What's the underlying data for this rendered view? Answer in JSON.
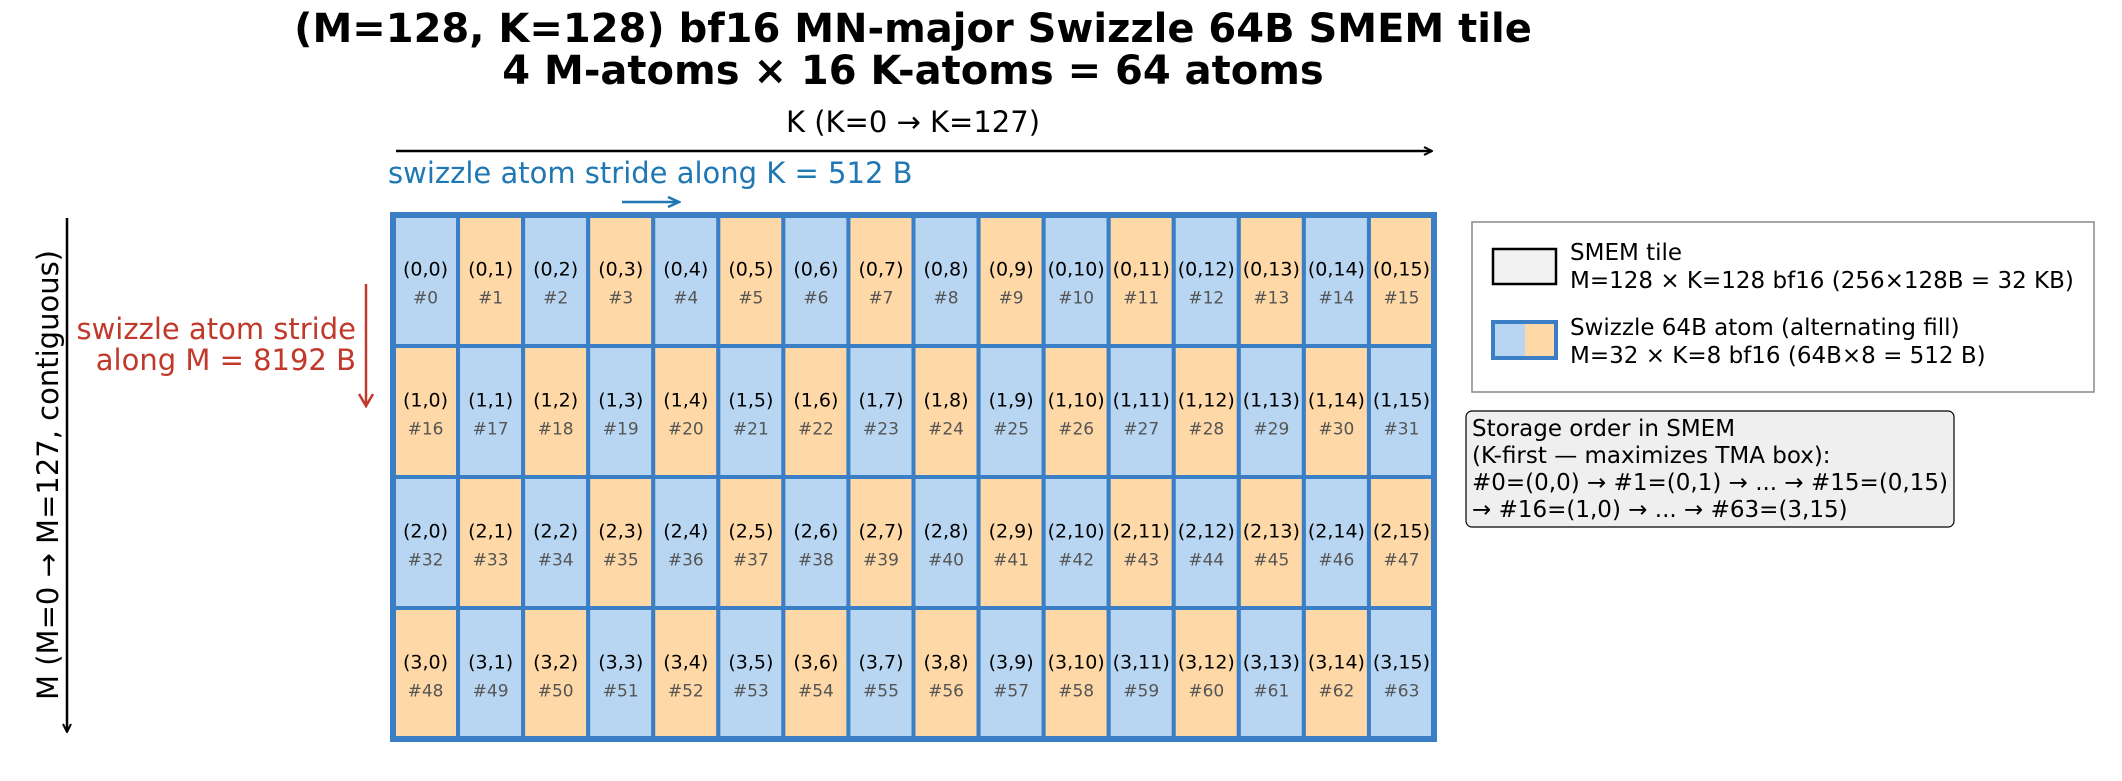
{
  "title": {
    "line1": "(M=128, K=128) bf16 MN-major Swizzle 64B SMEM tile",
    "line2": "4 M-atoms × 16 K-atoms = 64 atoms"
  },
  "k_axis": {
    "label": "K  (K=0 → K=127)",
    "stride_label": "swizzle atom stride along K = 512 B"
  },
  "m_axis": {
    "label": "M  (M=0 → M=127, contiguous)",
    "stride_label_line1": "swizzle atom stride",
    "stride_label_line2": "along M = 8192 B"
  },
  "grid": {
    "rows": 4,
    "cols": 16,
    "cells": [
      [
        {
          "coord": "(0,0)",
          "index": "#0"
        },
        {
          "coord": "(0,1)",
          "index": "#1"
        },
        {
          "coord": "(0,2)",
          "index": "#2"
        },
        {
          "coord": "(0,3)",
          "index": "#3"
        },
        {
          "coord": "(0,4)",
          "index": "#4"
        },
        {
          "coord": "(0,5)",
          "index": "#5"
        },
        {
          "coord": "(0,6)",
          "index": "#6"
        },
        {
          "coord": "(0,7)",
          "index": "#7"
        },
        {
          "coord": "(0,8)",
          "index": "#8"
        },
        {
          "coord": "(0,9)",
          "index": "#9"
        },
        {
          "coord": "(0,10)",
          "index": "#10"
        },
        {
          "coord": "(0,11)",
          "index": "#11"
        },
        {
          "coord": "(0,12)",
          "index": "#12"
        },
        {
          "coord": "(0,13)",
          "index": "#13"
        },
        {
          "coord": "(0,14)",
          "index": "#14"
        },
        {
          "coord": "(0,15)",
          "index": "#15"
        }
      ],
      [
        {
          "coord": "(1,0)",
          "index": "#16"
        },
        {
          "coord": "(1,1)",
          "index": "#17"
        },
        {
          "coord": "(1,2)",
          "index": "#18"
        },
        {
          "coord": "(1,3)",
          "index": "#19"
        },
        {
          "coord": "(1,4)",
          "index": "#20"
        },
        {
          "coord": "(1,5)",
          "index": "#21"
        },
        {
          "coord": "(1,6)",
          "index": "#22"
        },
        {
          "coord": "(1,7)",
          "index": "#23"
        },
        {
          "coord": "(1,8)",
          "index": "#24"
        },
        {
          "coord": "(1,9)",
          "index": "#25"
        },
        {
          "coord": "(1,10)",
          "index": "#26"
        },
        {
          "coord": "(1,11)",
          "index": "#27"
        },
        {
          "coord": "(1,12)",
          "index": "#28"
        },
        {
          "coord": "(1,13)",
          "index": "#29"
        },
        {
          "coord": "(1,14)",
          "index": "#30"
        },
        {
          "coord": "(1,15)",
          "index": "#31"
        }
      ],
      [
        {
          "coord": "(2,0)",
          "index": "#32"
        },
        {
          "coord": "(2,1)",
          "index": "#33"
        },
        {
          "coord": "(2,2)",
          "index": "#34"
        },
        {
          "coord": "(2,3)",
          "index": "#35"
        },
        {
          "coord": "(2,4)",
          "index": "#36"
        },
        {
          "coord": "(2,5)",
          "index": "#37"
        },
        {
          "coord": "(2,6)",
          "index": "#38"
        },
        {
          "coord": "(2,7)",
          "index": "#39"
        },
        {
          "coord": "(2,8)",
          "index": "#40"
        },
        {
          "coord": "(2,9)",
          "index": "#41"
        },
        {
          "coord": "(2,10)",
          "index": "#42"
        },
        {
          "coord": "(2,11)",
          "index": "#43"
        },
        {
          "coord": "(2,12)",
          "index": "#44"
        },
        {
          "coord": "(2,13)",
          "index": "#45"
        },
        {
          "coord": "(2,14)",
          "index": "#46"
        },
        {
          "coord": "(2,15)",
          "index": "#47"
        }
      ],
      [
        {
          "coord": "(3,0)",
          "index": "#48"
        },
        {
          "coord": "(3,1)",
          "index": "#49"
        },
        {
          "coord": "(3,2)",
          "index": "#50"
        },
        {
          "coord": "(3,3)",
          "index": "#51"
        },
        {
          "coord": "(3,4)",
          "index": "#52"
        },
        {
          "coord": "(3,5)",
          "index": "#53"
        },
        {
          "coord": "(3,6)",
          "index": "#54"
        },
        {
          "coord": "(3,7)",
          "index": "#55"
        },
        {
          "coord": "(3,8)",
          "index": "#56"
        },
        {
          "coord": "(3,9)",
          "index": "#57"
        },
        {
          "coord": "(3,10)",
          "index": "#58"
        },
        {
          "coord": "(3,11)",
          "index": "#59"
        },
        {
          "coord": "(3,12)",
          "index": "#60"
        },
        {
          "coord": "(3,13)",
          "index": "#61"
        },
        {
          "coord": "(3,14)",
          "index": "#62"
        },
        {
          "coord": "(3,15)",
          "index": "#63"
        }
      ]
    ]
  },
  "legend": {
    "tile_line1": "SMEM tile",
    "tile_line2": "M=128 × K=128 bf16 (256×128B = 32 KB)",
    "atom_line1": "Swizzle 64B atom (alternating fill)",
    "atom_line2": "M=32 × K=8 bf16 (64B×8 = 512 B)"
  },
  "storage_order": {
    "lines": [
      "Storage order in SMEM",
      "(K-first — maximizes TMA box):",
      "#0=(0,0) → #1=(0,1) → ... → #15=(0,15)",
      "→ #16=(1,0) → ... → #63=(3,15)"
    ]
  },
  "colors": {
    "atom_blue": "#b8d6f2",
    "atom_orange": "#fed8a6",
    "tile_border": "#3a7ec6",
    "k_stride": "#1f77b4",
    "m_stride": "#c0392b",
    "tile_fill": "#f2f2f2",
    "order_box_fill": "#efefef"
  }
}
